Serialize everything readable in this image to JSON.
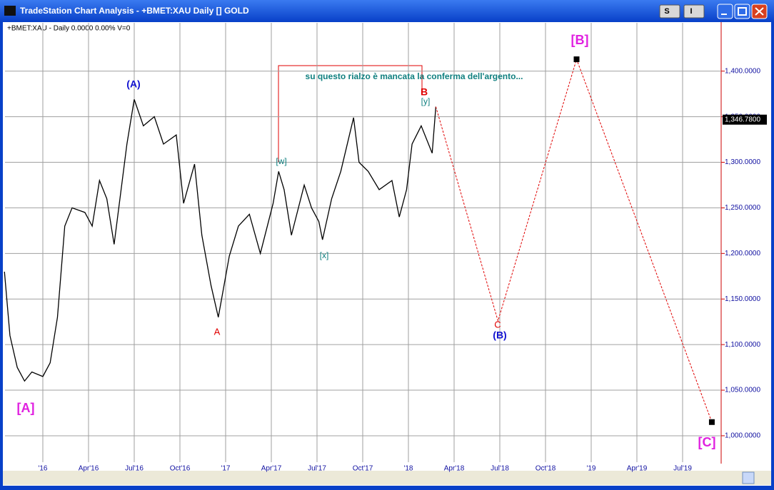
{
  "window": {
    "title": "TradeStation Chart Analysis - +BMET:XAU Daily [] GOLD",
    "buttons": [
      "S",
      "I"
    ]
  },
  "chart_data": {
    "type": "line",
    "title": "+BMET:XAU - Daily 0.0000 0.00% V=0",
    "xlim": [
      2015.793,
      2019.711
    ],
    "xticks": [
      {
        "value": 2016,
        "label": "'16"
      },
      {
        "value": 2016.25,
        "label": "Apr'16"
      },
      {
        "value": 2016.5,
        "label": "Jul'16"
      },
      {
        "value": 2016.75,
        "label": "Oct'16"
      },
      {
        "value": 2017,
        "label": "'17"
      },
      {
        "value": 2017.25,
        "label": "Apr'17"
      },
      {
        "value": 2017.5,
        "label": "Jul'17"
      },
      {
        "value": 2017.75,
        "label": "Oct'17"
      },
      {
        "value": 2018,
        "label": "'18"
      },
      {
        "value": 2018.25,
        "label": "Apr'18"
      },
      {
        "value": 2018.5,
        "label": "Jul'18"
      },
      {
        "value": 2018.75,
        "label": "Oct'18"
      },
      {
        "value": 2019,
        "label": "'19"
      },
      {
        "value": 2019.25,
        "label": "Apr'19"
      },
      {
        "value": 2019.5,
        "label": "Jul'19"
      }
    ],
    "ylim": [
      971,
      1453
    ],
    "yticks": [
      {
        "value": 1000,
        "label": "1,000.0000"
      },
      {
        "value": 1050,
        "label": "1,050.0000"
      },
      {
        "value": 1100,
        "label": "1,100.0000"
      },
      {
        "value": 1150,
        "label": "1,150.0000"
      },
      {
        "value": 1200,
        "label": "1,200.0000"
      },
      {
        "value": 1250,
        "label": "1,250.0000"
      },
      {
        "value": 1300,
        "label": "1,300.0000"
      },
      {
        "value": 1350,
        "label": "1,350.0000"
      },
      {
        "value": 1400,
        "label": "1,400.0000"
      }
    ],
    "grid": true,
    "last_price": {
      "value": 1346.78,
      "label": "1,346.7800"
    },
    "series": [
      {
        "color": "#000000",
        "x": [
          2015.79,
          2015.82,
          2015.86,
          2015.9,
          2015.94,
          2016.0,
          2016.04,
          2016.08,
          2016.12,
          2016.16,
          2016.23,
          2016.27,
          2016.31,
          2016.35,
          2016.39,
          2016.46,
          2016.5,
          2016.55,
          2016.61,
          2016.66,
          2016.73,
          2016.77,
          2016.83,
          2016.87,
          2016.92,
          2016.96,
          2017.02,
          2017.07,
          2017.13,
          2017.19,
          2017.26,
          2017.29,
          2017.32,
          2017.36,
          2017.43,
          2017.47,
          2017.51,
          2017.53,
          2017.58,
          2017.63,
          2017.7,
          2017.73,
          2017.78,
          2017.84,
          2017.91,
          2017.95,
          2017.99,
          2018.02,
          2018.07,
          2018.13,
          2018.15
        ],
        "values": [
          1180,
          1110,
          1075,
          1060,
          1070,
          1065,
          1080,
          1130,
          1230,
          1250,
          1245,
          1230,
          1280,
          1260,
          1210,
          1320,
          1369,
          1340,
          1350,
          1320,
          1330,
          1255,
          1298,
          1220,
          1165,
          1130,
          1197,
          1230,
          1243,
          1200,
          1255,
          1290,
          1270,
          1220,
          1275,
          1250,
          1235,
          1215,
          1260,
          1290,
          1349,
          1300,
          1290,
          1270,
          1280,
          1240,
          1270,
          1320,
          1340,
          1310,
          1361
        ]
      },
      {
        "color": "#e00000",
        "dashed": true,
        "x": [
          2018.15,
          2018.49,
          2018.92,
          2019.66
        ],
        "values": [
          1361,
          1126,
          1413,
          1015
        ]
      }
    ],
    "annotations": [
      {
        "text": "[A]",
        "color": "#e020e0"
      },
      {
        "text": "(A)",
        "color": "#1010d0"
      },
      {
        "text": "A",
        "color": "#e00000"
      },
      {
        "text": "[w]",
        "color": "#108080"
      },
      {
        "text": "[x]",
        "color": "#108080"
      },
      {
        "text": "[y]",
        "color": "#108080"
      },
      {
        "text": "B",
        "color": "#e00000"
      },
      {
        "text": "C",
        "color": "#e00000"
      },
      {
        "text": "(B)",
        "color": "#1010d0"
      },
      {
        "text": "[B]",
        "color": "#e020e0"
      },
      {
        "text": "[C]",
        "color": "#e020e0"
      },
      {
        "text": "su questo rialzo è mancata la conferma dell'argento...",
        "color": "#108080"
      }
    ]
  }
}
